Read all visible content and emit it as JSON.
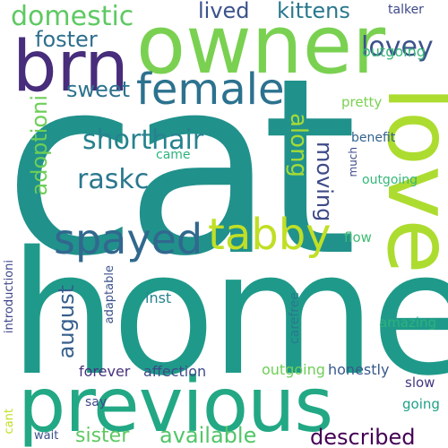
{
  "words": [
    {
      "text": "cat",
      "color": "#21918c"
    },
    {
      "text": "home",
      "color": "#1f9a8a"
    },
    {
      "text": "owner",
      "color": "#7ad151"
    },
    {
      "text": "previous",
      "color": "#22a884"
    },
    {
      "text": "love",
      "color": "#addc30"
    },
    {
      "text": "brn",
      "color": "#472d7b"
    },
    {
      "text": "female",
      "color": "#2c728e"
    },
    {
      "text": "spayed",
      "color": "#31688e"
    },
    {
      "text": "tabby",
      "color": "#c0df25"
    },
    {
      "text": "shorthair",
      "color": "#26828e"
    },
    {
      "text": "domestic",
      "color": "#5ec962"
    },
    {
      "text": "lived",
      "color": "#3b528b"
    },
    {
      "text": "kittens",
      "color": "#2a788e"
    },
    {
      "text": "foster",
      "color": "#2e6f8e"
    },
    {
      "text": "lovey",
      "color": "#3b528b"
    },
    {
      "text": "sweet",
      "color": "#2c728e"
    },
    {
      "text": "raskc",
      "color": "#2a788e"
    },
    {
      "text": "adoptioni",
      "color": "#6ece58"
    },
    {
      "text": "along",
      "color": "#a5db36"
    },
    {
      "text": "moving",
      "color": "#3e4a89"
    },
    {
      "text": "august",
      "color": "#355f8d"
    },
    {
      "text": "sister",
      "color": "#5ec962"
    },
    {
      "text": "available",
      "color": "#52c569"
    },
    {
      "text": "described",
      "color": "#440154"
    },
    {
      "text": "outgoing",
      "color": "#35b779"
    },
    {
      "text": "talker",
      "color": "#3e4989"
    },
    {
      "text": "pretty",
      "color": "#7ad151"
    },
    {
      "text": "benefit",
      "color": "#33638d"
    },
    {
      "text": "came",
      "color": "#2db27d"
    },
    {
      "text": "much",
      "color": "#3e4a89"
    },
    {
      "text": "outgoing",
      "color": "#35b779"
    },
    {
      "text": "flow",
      "color": "#3fbc73"
    },
    {
      "text": "introductioni",
      "color": "#3f4788"
    },
    {
      "text": "adaptable",
      "color": "#3b528b"
    },
    {
      "text": "inst",
      "color": "#26828e"
    },
    {
      "text": "carefree",
      "color": "#2a788e"
    },
    {
      "text": "amazing",
      "color": "#2db27d"
    },
    {
      "text": "forever",
      "color": "#46327e"
    },
    {
      "text": "affection",
      "color": "#3e4a89"
    },
    {
      "text": "outgoing",
      "color": "#6ece58"
    },
    {
      "text": "honestly",
      "color": "#38598c"
    },
    {
      "text": "slow",
      "color": "#453781"
    },
    {
      "text": "cant",
      "color": "#c2df23"
    },
    {
      "text": "say",
      "color": "#3e4a89"
    },
    {
      "text": "going",
      "color": "#1fa187"
    },
    {
      "text": "wait",
      "color": "#3b528b"
    }
  ]
}
